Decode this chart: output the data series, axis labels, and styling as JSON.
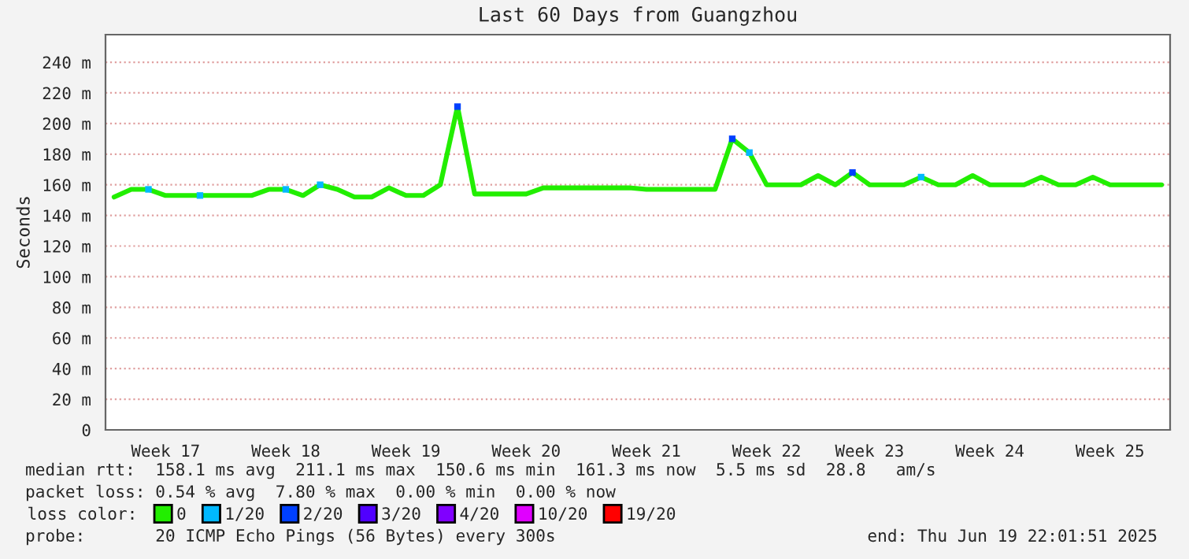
{
  "chart_data": {
    "type": "line",
    "title": "Last 60 Days from Guangzhou",
    "ylabel": "Seconds",
    "categories": [
      null,
      null,
      null,
      "Week 17",
      null,
      null,
      null,
      null,
      null,
      null,
      "Week 18",
      null,
      null,
      null,
      null,
      null,
      null,
      "Week 19",
      null,
      null,
      null,
      null,
      null,
      null,
      "Week 20",
      null,
      null,
      null,
      null,
      null,
      null,
      "Week 21",
      null,
      null,
      null,
      null,
      null,
      null,
      "Week 22",
      null,
      null,
      null,
      null,
      null,
      "Week 23",
      null,
      null,
      null,
      null,
      null,
      null,
      "Week 24",
      null,
      null,
      null,
      null,
      null,
      null,
      "Week 25",
      null,
      null,
      null
    ],
    "series": [
      {
        "name": "0",
        "color": "#22ee00",
        "values": [
          152,
          157,
          157,
          153,
          153,
          153,
          153,
          153,
          153,
          157,
          157,
          153,
          160,
          157,
          152,
          152,
          158,
          153,
          153,
          160,
          211,
          154,
          154,
          154,
          154,
          158,
          158,
          158,
          158,
          158,
          158,
          157,
          157,
          157,
          157,
          157,
          190,
          181,
          160,
          160,
          160,
          166,
          160,
          168,
          160,
          160,
          160,
          165,
          160,
          160,
          166,
          160,
          160,
          160,
          165,
          160,
          160,
          165,
          160,
          160,
          160,
          160
        ]
      },
      {
        "name": "1/20",
        "type": "scatter",
        "marker": "square",
        "color": "#00b8ff",
        "values": [
          null,
          null,
          157,
          null,
          null,
          153,
          null,
          null,
          null,
          null,
          157,
          null,
          160,
          null,
          null,
          null,
          null,
          null,
          null,
          null,
          null,
          null,
          null,
          null,
          null,
          null,
          null,
          null,
          null,
          null,
          null,
          null,
          null,
          null,
          null,
          null,
          null,
          181,
          null,
          null,
          null,
          null,
          null,
          null,
          null,
          null,
          null,
          165,
          null,
          null,
          null,
          null,
          null,
          null,
          null,
          null,
          null,
          null,
          null,
          null,
          null,
          null
        ]
      },
      {
        "name": "2/20",
        "type": "scatter",
        "marker": "square",
        "color": "#0040ff",
        "values": [
          null,
          null,
          null,
          null,
          null,
          null,
          null,
          null,
          null,
          null,
          null,
          null,
          null,
          null,
          null,
          null,
          null,
          null,
          null,
          null,
          211,
          null,
          null,
          null,
          null,
          null,
          null,
          null,
          null,
          null,
          null,
          null,
          null,
          null,
          null,
          null,
          190,
          null,
          null,
          null,
          null,
          null,
          null,
          168,
          null,
          null,
          null,
          null,
          null,
          null,
          null,
          null,
          null,
          null,
          null,
          null,
          null,
          null,
          null,
          null,
          null,
          null
        ]
      },
      {
        "name": "3/20",
        "type": "scatter",
        "color": "#5000ff",
        "values": [
          null,
          null,
          null,
          null,
          null,
          null,
          null,
          null,
          null,
          null,
          null,
          null,
          null,
          null,
          null,
          null,
          null,
          null,
          null,
          null,
          null,
          null,
          null,
          null,
          null,
          null,
          null,
          null,
          null,
          null,
          null,
          null,
          null,
          null,
          null,
          null,
          null,
          null,
          null,
          null,
          null,
          null,
          null,
          null,
          null,
          null,
          null,
          null,
          null,
          null,
          null,
          null,
          null,
          null,
          null,
          null,
          null,
          null,
          null,
          null,
          null,
          null
        ]
      },
      {
        "name": "4/20",
        "type": "scatter",
        "color": "#8000ff",
        "values": [
          null,
          null,
          null,
          null,
          null,
          null,
          null,
          null,
          null,
          null,
          null,
          null,
          null,
          null,
          null,
          null,
          null,
          null,
          null,
          null,
          null,
          null,
          null,
          null,
          null,
          null,
          null,
          null,
          null,
          null,
          null,
          null,
          null,
          null,
          null,
          null,
          null,
          null,
          null,
          null,
          null,
          null,
          null,
          null,
          null,
          null,
          null,
          null,
          null,
          null,
          null,
          null,
          null,
          null,
          null,
          null,
          null,
          null,
          null,
          null,
          null,
          null
        ]
      },
      {
        "name": "10/20",
        "type": "scatter",
        "color": "#e000ff",
        "values": [
          null,
          null,
          null,
          null,
          null,
          null,
          null,
          null,
          null,
          null,
          null,
          null,
          null,
          null,
          null,
          null,
          null,
          null,
          null,
          null,
          null,
          null,
          null,
          null,
          null,
          null,
          null,
          null,
          null,
          null,
          null,
          null,
          null,
          null,
          null,
          null,
          null,
          null,
          null,
          null,
          null,
          null,
          null,
          null,
          null,
          null,
          null,
          null,
          null,
          null,
          null,
          null,
          null,
          null,
          null,
          null,
          null,
          null,
          null,
          null,
          null,
          null
        ]
      },
      {
        "name": "19/20",
        "type": "scatter",
        "color": "#ff0000",
        "values": [
          null,
          null,
          null,
          null,
          null,
          null,
          null,
          null,
          null,
          null,
          null,
          null,
          null,
          null,
          null,
          null,
          null,
          null,
          null,
          null,
          null,
          null,
          null,
          null,
          null,
          null,
          null,
          null,
          null,
          null,
          null,
          null,
          null,
          null,
          null,
          null,
          null,
          null,
          null,
          null,
          null,
          null,
          null,
          null,
          null,
          null,
          null,
          null,
          null,
          null,
          null,
          null,
          null,
          null,
          null,
          null,
          null,
          null,
          null,
          null,
          null,
          null
        ]
      }
    ],
    "ylim": [
      0,
      258
    ],
    "yticks": [
      0,
      {
        "value": 20,
        "label": "20 m"
      },
      {
        "value": 40,
        "label": "40 m"
      },
      {
        "value": 60,
        "label": "60 m"
      },
      {
        "value": 80,
        "label": "80 m"
      },
      {
        "value": 100,
        "label": "100 m"
      },
      {
        "value": 120,
        "label": "120 m"
      },
      {
        "value": 140,
        "label": "140 m"
      },
      {
        "value": 160,
        "label": "160 m"
      },
      {
        "value": 180,
        "label": "180 m"
      },
      {
        "value": 200,
        "label": "200 m"
      },
      {
        "value": 220,
        "label": "220 m"
      },
      {
        "value": 240,
        "label": "240 m"
      }
    ],
    "grid": "y",
    "legend": "bottom",
    "legend_title": "loss color:",
    "annotations": [
      "median rtt:  158.1 ms avg  211.1 ms max  150.6 ms min  161.3 ms now  5.5 ms sd  28.8   am/s",
      "packet loss: 0.54 % avg  7.80 % max  0.00 % min  0.00 % now",
      "probe:       20 ICMP Echo Pings (56 Bytes) every 300s",
      "end: Thu Jun 19 22:01:51 2025"
    ]
  }
}
